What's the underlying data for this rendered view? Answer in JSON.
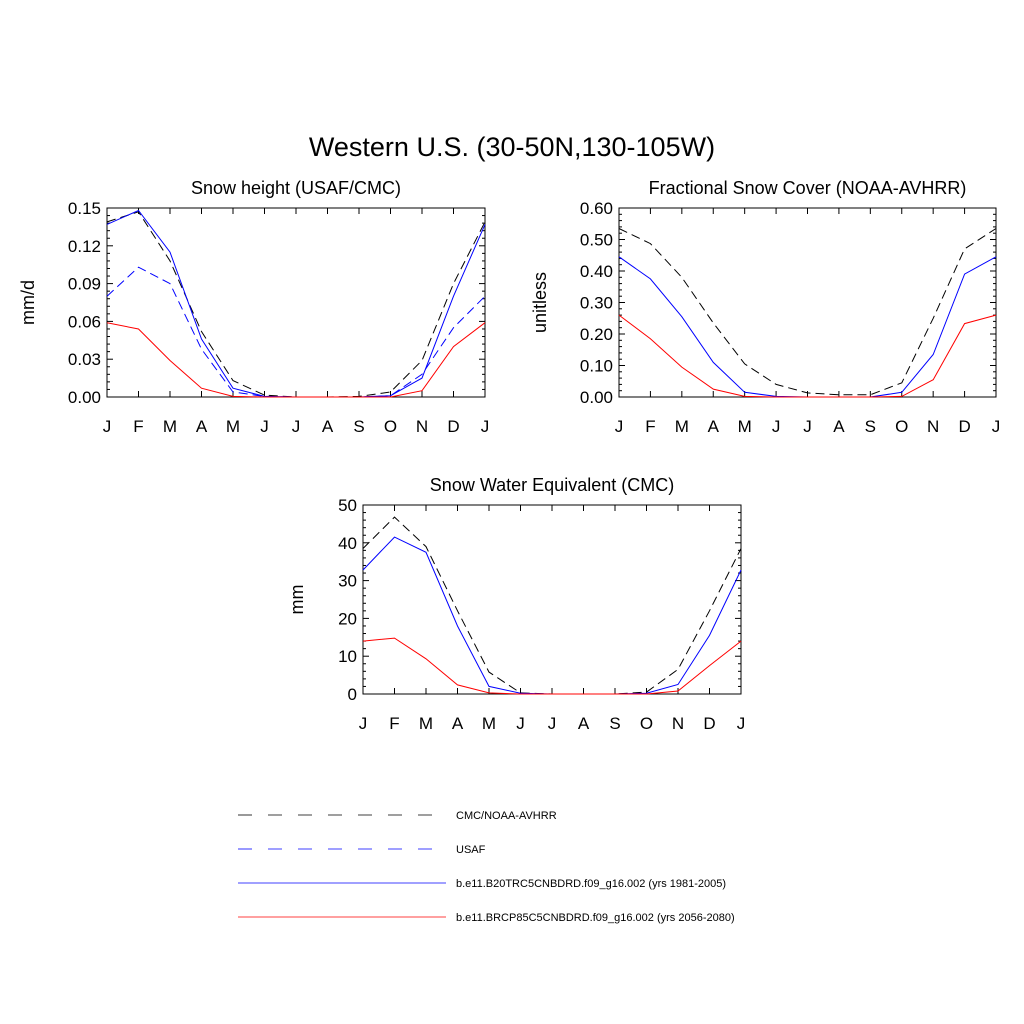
{
  "page_title": "Western U.S. (30-50N,130-105W)",
  "legend": [
    {
      "label": "CMC/NOAA-AVHRR",
      "color": "#000000",
      "dashed": true
    },
    {
      "label": "USAF",
      "color": "#0000ff",
      "dashed": true
    },
    {
      "label": "b.e11.B20TRC5CNBDRD.f09_g16.002 (yrs 1981-2005)",
      "color": "#0000ff",
      "dashed": false
    },
    {
      "label": "b.e11.BRCP85C5CNBDRD.f09_g16.002 (yrs 2056-2080)",
      "color": "#ff0000",
      "dashed": false
    }
  ],
  "chart_data": [
    {
      "type": "line",
      "title": "Snow height (USAF/CMC)",
      "xlabel": "",
      "ylabel": "mm/d",
      "categories": [
        "J",
        "F",
        "M",
        "A",
        "M",
        "J",
        "J",
        "A",
        "S",
        "O",
        "N",
        "D",
        "J"
      ],
      "ylim": [
        0,
        0.15
      ],
      "yticks": [
        "0.00",
        "0.03",
        "0.06",
        "0.09",
        "0.12",
        "0.15"
      ],
      "grid": false,
      "series": [
        {
          "name": "CMC/NOAA-AVHRR",
          "color": "#000000",
          "dashed": true,
          "values": [
            0.139,
            0.147,
            0.108,
            0.052,
            0.013,
            0.0015,
            0,
            0,
            0.0005,
            0.004,
            0.029,
            0.09,
            0.139
          ]
        },
        {
          "name": "USAF",
          "color": "#0000ff",
          "dashed": true,
          "values": [
            0.08,
            0.103,
            0.09,
            0.038,
            0.004,
            0.0005,
            0,
            0,
            0,
            0.001,
            0.018,
            0.055,
            0.08
          ]
        },
        {
          "name": "b.e11.B20TRC5CNBDRD.f09_g16.002 (yrs 1981-2005)",
          "color": "#0000ff",
          "dashed": false,
          "values": [
            0.137,
            0.148,
            0.115,
            0.046,
            0.007,
            0.0005,
            0,
            0,
            0,
            0.001,
            0.015,
            0.08,
            0.137
          ]
        },
        {
          "name": "b.e11.BRCP85C5CNBDRD.f09_g16.002 (yrs 2056-2080)",
          "color": "#ff0000",
          "dashed": false,
          "values": [
            0.059,
            0.054,
            0.029,
            0.007,
            0.0005,
            0,
            0,
            0,
            0,
            0,
            0.005,
            0.04,
            0.059
          ]
        }
      ]
    },
    {
      "type": "line",
      "title": "Fractional Snow Cover (NOAA-AVHRR)",
      "xlabel": "",
      "ylabel": "unitless",
      "categories": [
        "J",
        "F",
        "M",
        "A",
        "M",
        "J",
        "J",
        "A",
        "S",
        "O",
        "N",
        "D",
        "J"
      ],
      "ylim": [
        0,
        0.6
      ],
      "yticks": [
        "0.00",
        "0.10",
        "0.20",
        "0.30",
        "0.40",
        "0.50",
        "0.60"
      ],
      "grid": false,
      "series": [
        {
          "name": "CMC/NOAA-AVHRR",
          "color": "#000000",
          "dashed": true,
          "values": [
            0.535,
            0.487,
            0.38,
            0.235,
            0.105,
            0.04,
            0.013,
            0.007,
            0.007,
            0.045,
            0.25,
            0.47,
            0.535
          ]
        },
        {
          "name": "b.e11.B20TRC5CNBDRD.f09_g16.002 (yrs 1981-2005)",
          "color": "#0000ff",
          "dashed": false,
          "values": [
            0.445,
            0.375,
            0.255,
            0.11,
            0.015,
            0.002,
            0,
            0,
            0,
            0.015,
            0.135,
            0.39,
            0.445
          ]
        },
        {
          "name": "b.e11.BRCP85C5CNBDRD.f09_g16.002 (yrs 2056-2080)",
          "color": "#ff0000",
          "dashed": false,
          "values": [
            0.26,
            0.185,
            0.095,
            0.025,
            0.002,
            0,
            0,
            0,
            0,
            0.002,
            0.055,
            0.233,
            0.26
          ]
        }
      ]
    },
    {
      "type": "line",
      "title": "Snow Water Equivalent (CMC)",
      "xlabel": "",
      "ylabel": "mm",
      "categories": [
        "J",
        "F",
        "M",
        "A",
        "M",
        "J",
        "J",
        "A",
        "S",
        "O",
        "N",
        "D",
        "J"
      ],
      "ylim": [
        0,
        50
      ],
      "yticks": [
        "0",
        "10",
        "20",
        "30",
        "40",
        "50"
      ],
      "grid": false,
      "series": [
        {
          "name": "CMC/NOAA-AVHRR",
          "color": "#000000",
          "dashed": true,
          "values": [
            38.5,
            46.8,
            39.0,
            22.0,
            5.8,
            0.3,
            0,
            0,
            0,
            0.5,
            6.5,
            22.0,
            38.5
          ]
        },
        {
          "name": "b.e11.B20TRC5CNBDRD.f09_g16.002 (yrs 1981-2005)",
          "color": "#0000ff",
          "dashed": false,
          "values": [
            32.8,
            41.5,
            37.5,
            18.0,
            2.0,
            0.2,
            0,
            0,
            0,
            0.2,
            2.5,
            15.5,
            32.8
          ]
        },
        {
          "name": "b.e11.BRCP85C5CNBDRD.f09_g16.002 (yrs 2056-2080)",
          "color": "#ff0000",
          "dashed": false,
          "values": [
            14.0,
            14.8,
            9.3,
            2.4,
            0.3,
            0,
            0,
            0,
            0,
            0,
            0.8,
            7.5,
            14.0
          ]
        }
      ]
    }
  ]
}
